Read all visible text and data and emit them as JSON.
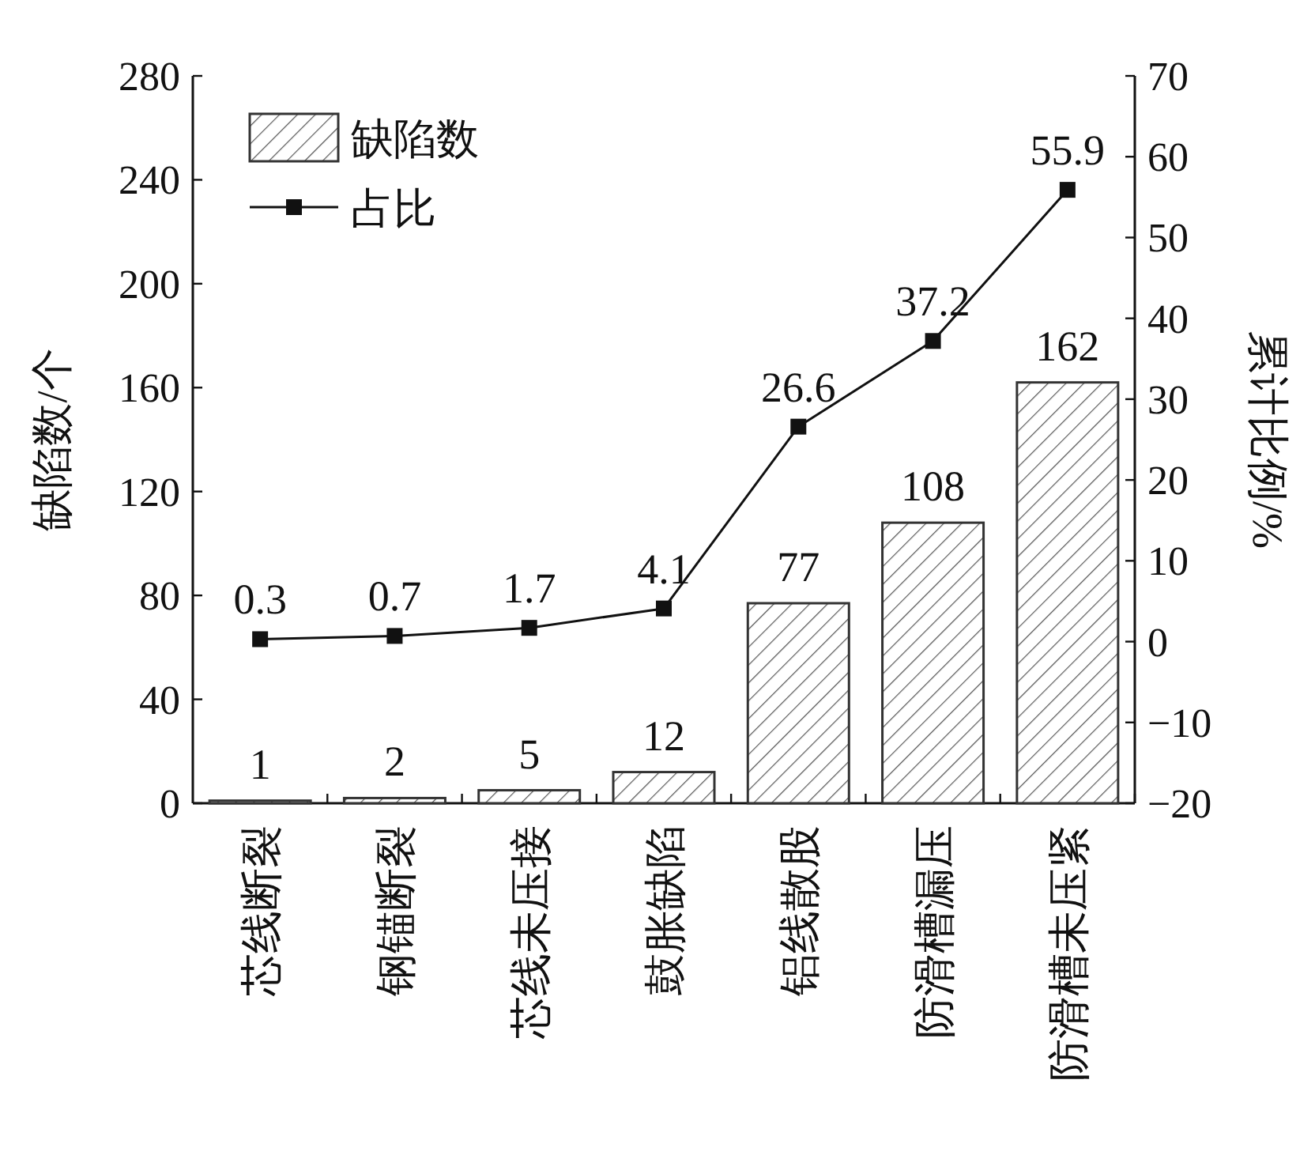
{
  "chart_data": {
    "type": "bar",
    "categories": [
      "芯线断裂",
      "钢锚断裂",
      "芯线未压接",
      "鼓胀缺陷",
      "铝线散股",
      "防滑槽漏压",
      "防滑槽未压紧"
    ],
    "series": [
      {
        "name": "缺陷数",
        "color": "#333333",
        "values": [
          1,
          2,
          5,
          12,
          77,
          108,
          162
        ]
      },
      {
        "name": "占比",
        "type": "line",
        "axis": "y2",
        "color": "#111111",
        "marker": "square",
        "values": [
          0.3,
          0.7,
          1.7,
          4.1,
          26.6,
          37.2,
          55.9
        ]
      }
    ],
    "ylabel": "缺陷数/个",
    "y2label": "累计比例/%",
    "ylim": [
      0,
      280
    ],
    "yticks": [
      0,
      40,
      80,
      120,
      160,
      200,
      240,
      280
    ],
    "y2lim": [
      -20,
      70
    ],
    "y2ticks": [
      {
        "value": -20,
        "label": "−20"
      },
      {
        "value": -10,
        "label": "−10"
      },
      0,
      10,
      20,
      30,
      40,
      50,
      60,
      70
    ],
    "data_labels": true,
    "legend": "top left"
  }
}
